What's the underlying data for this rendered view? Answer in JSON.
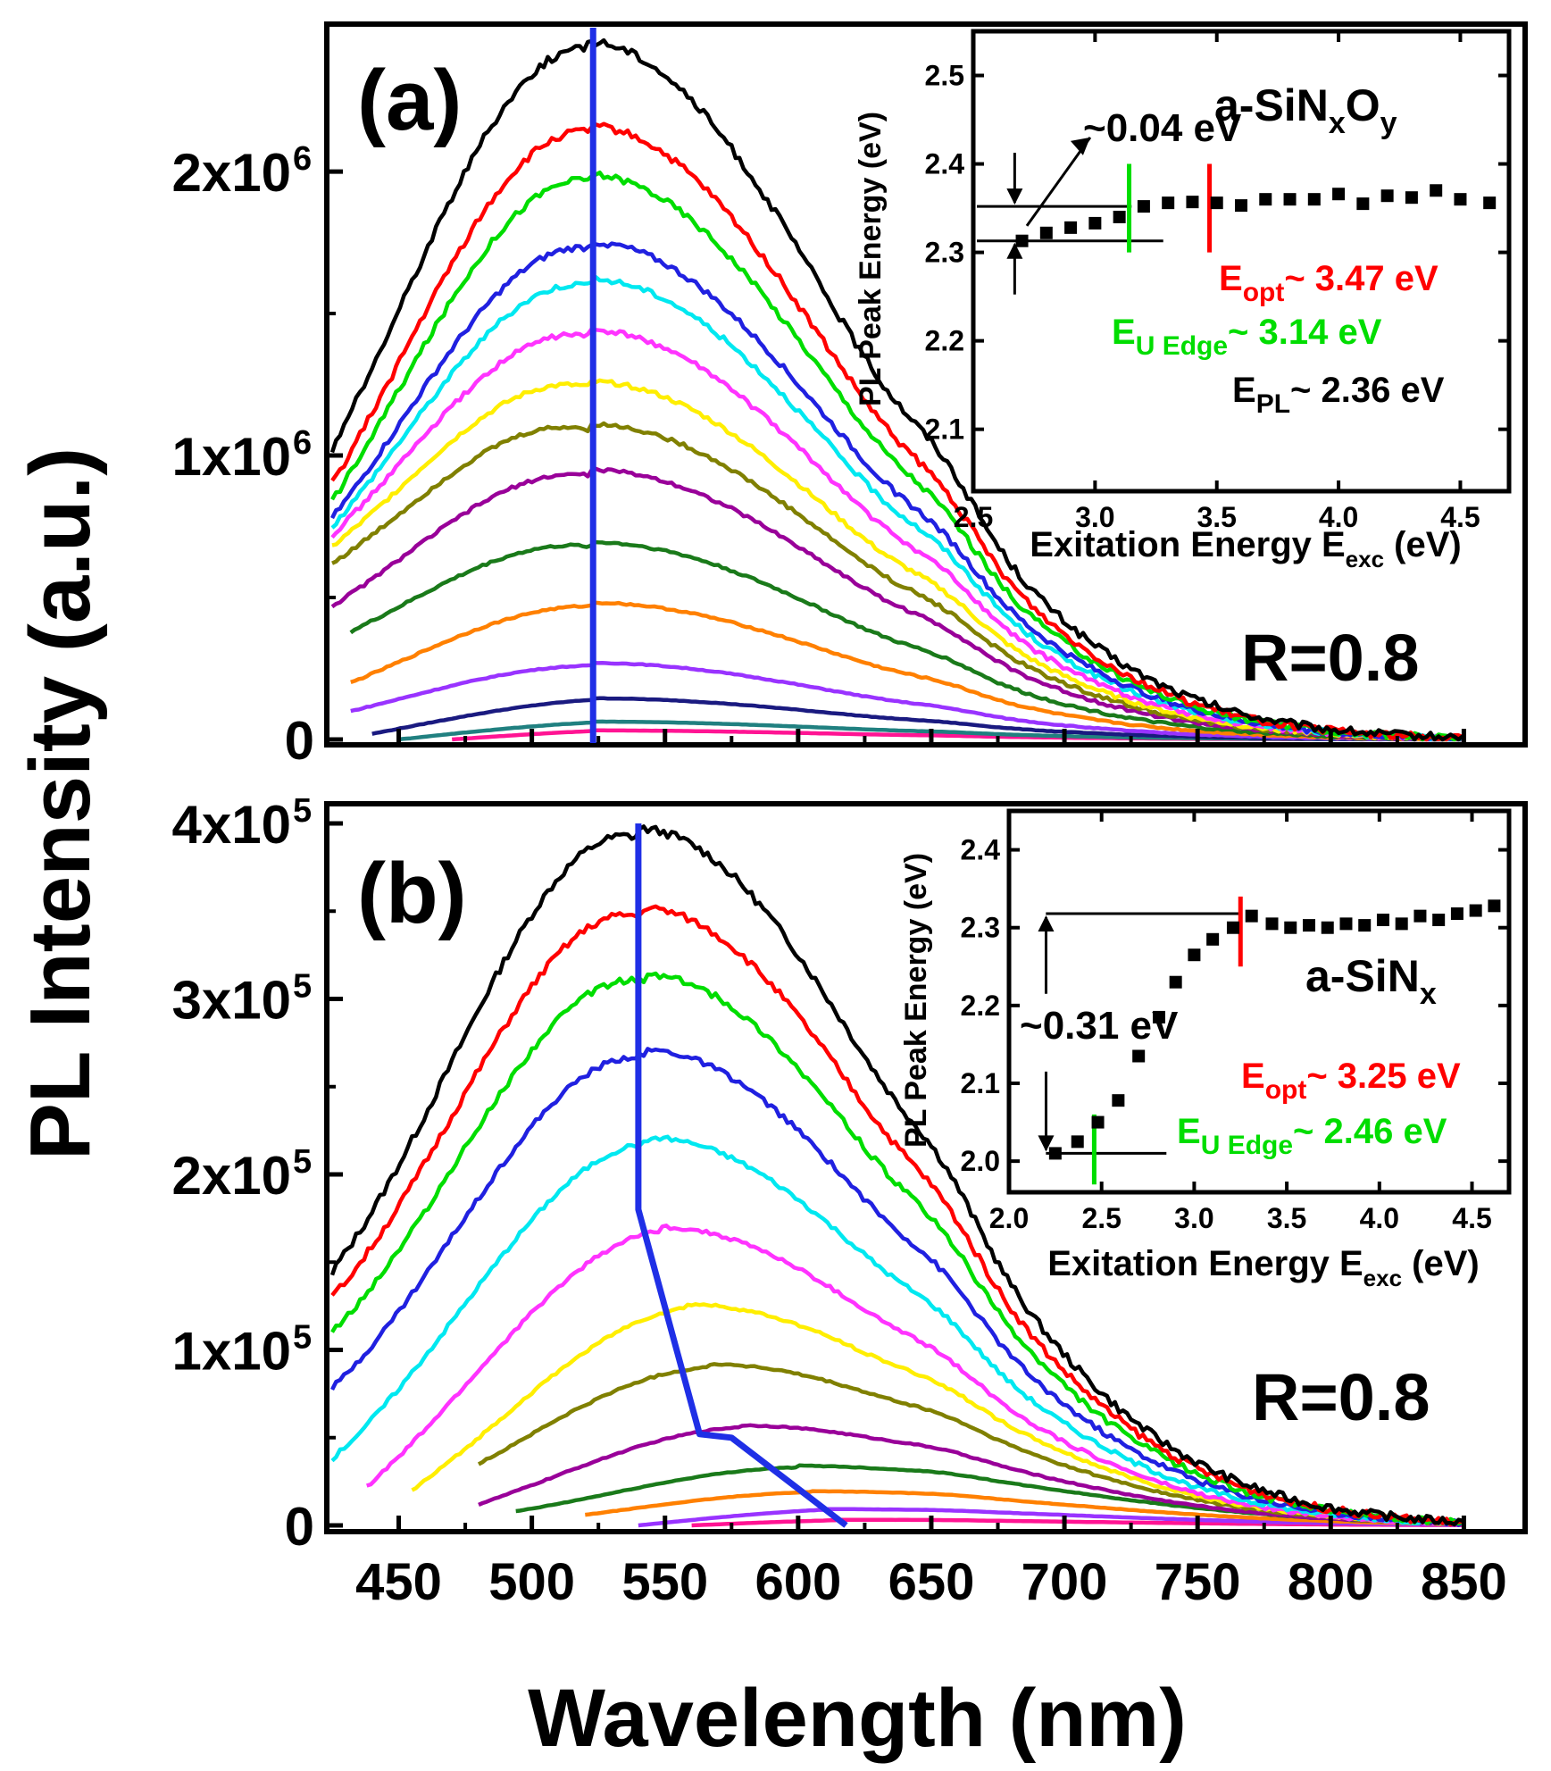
{
  "figure": {
    "ylabel": "PL Intensity (a.u.)",
    "xlabel": "Wavelength (nm)",
    "x_ticks": [
      "450",
      "500",
      "550",
      "600",
      "650",
      "700",
      "750",
      "800",
      "850"
    ]
  },
  "colors": {
    "black": "#000000",
    "red": "#ff0000",
    "green": "#00dd00",
    "blue": "#2020e0",
    "cyan": "#00e8f0",
    "magenta": "#ff33ff",
    "yellow": "#ffee00",
    "olive": "#808000",
    "purple": "#990099",
    "darkgreen": "#1a7a1a",
    "orange": "#ff8000",
    "violet": "#9933ff",
    "navy": "#1a1a80",
    "teal": "#208080",
    "pink": "#ff1493",
    "trace": "#1f2fe6"
  },
  "chart_data": [
    {
      "id": "a",
      "type": "line",
      "panel_label": "(a)",
      "annotation": "R=0.8",
      "x_range": [
        423,
        873
      ],
      "ylim": [
        0,
        2.45
      ],
      "ytick_values": [
        0,
        1,
        2
      ],
      "ytick_labels": [
        "0",
        "1x10",
        "2x10"
      ],
      "ytick_exponent": "6",
      "y_unit": "x10^6",
      "peak_line_x": [
        523,
        523
      ],
      "series": [
        {
          "name": "curve-1",
          "color": "black",
          "peak_x": 520,
          "peak": 2.43,
          "x0": 425,
          "x1": 850,
          "y0": 1.02,
          "tail": 0.03
        },
        {
          "name": "curve-2",
          "color": "red",
          "peak_x": 521,
          "peak": 2.14,
          "x0": 425,
          "x1": 850,
          "y0": 0.9,
          "tail": 0.02
        },
        {
          "name": "curve-3",
          "color": "green",
          "peak_x": 521,
          "peak": 1.97,
          "x0": 425,
          "x1": 850,
          "y0": 0.84,
          "tail": 0.02
        },
        {
          "name": "curve-4",
          "color": "blue",
          "peak_x": 522,
          "peak": 1.73,
          "x0": 425,
          "x1": 850,
          "y0": 0.78,
          "tail": 0.02
        },
        {
          "name": "curve-5",
          "color": "cyan",
          "peak_x": 522,
          "peak": 1.6,
          "x0": 425,
          "x1": 850,
          "y0": 0.75,
          "tail": 0.02
        },
        {
          "name": "curve-6",
          "color": "magenta",
          "peak_x": 522,
          "peak": 1.42,
          "x0": 425,
          "x1": 850,
          "y0": 0.72,
          "tail": 0.02
        },
        {
          "name": "curve-7",
          "color": "yellow",
          "peak_x": 522,
          "peak": 1.24,
          "x0": 425,
          "x1": 850,
          "y0": 0.68,
          "tail": 0.02
        },
        {
          "name": "curve-8",
          "color": "olive",
          "peak_x": 522,
          "peak": 1.09,
          "x0": 425,
          "x1": 850,
          "y0": 0.62,
          "tail": 0.02
        },
        {
          "name": "curve-9",
          "color": "purple",
          "peak_x": 522,
          "peak": 0.93,
          "x0": 425,
          "x1": 850,
          "y0": 0.47,
          "tail": 0.02
        },
        {
          "name": "curve-10",
          "color": "darkgreen",
          "peak_x": 522,
          "peak": 0.68,
          "x0": 432,
          "x1": 850,
          "y0": 0.38,
          "tail": 0.015
        },
        {
          "name": "curve-11",
          "color": "orange",
          "peak_x": 522,
          "peak": 0.47,
          "x0": 432,
          "x1": 850,
          "y0": 0.2,
          "tail": 0.012
        },
        {
          "name": "curve-12",
          "color": "violet",
          "peak_x": 522,
          "peak": 0.26,
          "x0": 432,
          "x1": 850,
          "y0": 0.1,
          "tail": 0.01
        },
        {
          "name": "curve-13",
          "color": "navy",
          "peak_x": 523,
          "peak": 0.14,
          "x0": 440,
          "x1": 850,
          "y0": 0.02,
          "tail": 0.005
        },
        {
          "name": "curve-14",
          "color": "teal",
          "peak_x": 523,
          "peak": 0.06,
          "x0": 450,
          "x1": 850,
          "y0": 0.0,
          "tail": 0.003
        },
        {
          "name": "curve-15",
          "color": "pink",
          "peak_x": 523,
          "peak": 0.03,
          "x0": 470,
          "x1": 850,
          "y0": 0.0,
          "tail": 0.002
        }
      ],
      "inset": {
        "type": "scatter",
        "xlabel": "Exitation Energy E",
        "xlabel_sub": "exc",
        "xlabel_unit": " (eV)",
        "ylabel": "PL Peak Energy (eV)",
        "xlim": [
          2.5,
          4.7
        ],
        "ylim": [
          2.03,
          2.55
        ],
        "xtick_values": [
          2.5,
          3.0,
          3.5,
          4.0,
          4.5
        ],
        "xtick_labels": [
          "2.5",
          "3.0",
          "3.5",
          "4.0",
          "4.5"
        ],
        "ytick_values": [
          2.1,
          2.2,
          2.3,
          2.4,
          2.5
        ],
        "ytick_labels": [
          "2.1",
          "2.2",
          "2.3",
          "2.4",
          "2.5"
        ],
        "x": [
          2.7,
          2.8,
          2.9,
          3.0,
          3.1,
          3.2,
          3.3,
          3.4,
          3.5,
          3.6,
          3.7,
          3.8,
          3.9,
          4.0,
          4.1,
          4.2,
          4.3,
          4.4,
          4.5,
          4.62
        ],
        "y": [
          2.313,
          2.322,
          2.328,
          2.333,
          2.34,
          2.352,
          2.356,
          2.357,
          2.356,
          2.353,
          2.36,
          2.36,
          2.36,
          2.366,
          2.355,
          2.364,
          2.362,
          2.37,
          2.36,
          2.356
        ],
        "hlines": [
          {
            "y": 2.352,
            "x": [
              2.5,
              3.15
            ]
          },
          {
            "y": 2.313,
            "x": [
              2.5,
              3.28
            ]
          }
        ],
        "arrow_x": 2.67,
        "arrow_range": [
          2.313,
          2.352
        ],
        "pointer_from": [
          2.72,
          2.33
        ],
        "pointer_to": [
          2.98,
          2.43
        ],
        "vlines": [
          {
            "x": 3.14,
            "y": [
              2.3,
              2.4
            ],
            "color": "green"
          },
          {
            "x": 3.47,
            "y": [
              2.3,
              2.4
            ],
            "color": "red"
          }
        ],
        "delta_label": "~0.04 eV",
        "material": {
          "base": "a-SiN",
          "sub1": "x",
          "mid": "O",
          "sub2": "y"
        },
        "e_opt": {
          "base": "E",
          "sub": "opt",
          "value": "~ 3.47 eV"
        },
        "e_u": {
          "base": "E",
          "sub": "U Edge",
          "value": "~ 3.14 eV"
        },
        "e_pl": {
          "base": "E",
          "sub": "PL",
          "value": "~ 2.36 eV"
        }
      }
    },
    {
      "id": "b",
      "type": "line",
      "panel_label": "(b)",
      "annotation": "R=0.8",
      "x_range": [
        423,
        873
      ],
      "ylim": [
        0,
        4.0
      ],
      "ytick_values": [
        0,
        1,
        2,
        3,
        4
      ],
      "ytick_labels": [
        "0",
        "1x10",
        "2x10",
        "3x10",
        "4x10"
      ],
      "ytick_exponent": "5",
      "y_unit": "x10^5",
      "peak_line_x": [
        540,
        540,
        563,
        575,
        618
      ],
      "peak_line_y": [
        4.0,
        1.8,
        0.52,
        0.5,
        0.0
      ],
      "series": [
        {
          "name": "curve-1",
          "color": "black",
          "peak_x": 540,
          "peak": 3.92,
          "x0": 425,
          "x1": 850,
          "y0": 1.45,
          "tail": 0.05
        },
        {
          "name": "curve-2",
          "color": "red",
          "peak_x": 541,
          "peak": 3.47,
          "x0": 425,
          "x1": 850,
          "y0": 1.3,
          "tail": 0.05
        },
        {
          "name": "curve-3",
          "color": "green",
          "peak_x": 542,
          "peak": 3.1,
          "x0": 425,
          "x1": 850,
          "y0": 1.1,
          "tail": 0.04
        },
        {
          "name": "curve-4",
          "color": "blue",
          "peak_x": 542,
          "peak": 2.67,
          "x0": 425,
          "x1": 850,
          "y0": 0.78,
          "tail": 0.04
        },
        {
          "name": "curve-5",
          "color": "cyan",
          "peak_x": 544,
          "peak": 2.18,
          "x0": 425,
          "x1": 850,
          "y0": 0.38,
          "tail": 0.03
        },
        {
          "name": "curve-6",
          "color": "magenta",
          "peak_x": 548,
          "peak": 1.68,
          "x0": 438,
          "x1": 850,
          "y0": 0.22,
          "tail": 0.02
        },
        {
          "name": "curve-7",
          "color": "yellow",
          "peak_x": 558,
          "peak": 1.24,
          "x0": 455,
          "x1": 850,
          "y0": 0.2,
          "tail": 0.02
        },
        {
          "name": "curve-8",
          "color": "olive",
          "peak_x": 566,
          "peak": 0.9,
          "x0": 480,
          "x1": 850,
          "y0": 0.35,
          "tail": 0.02
        },
        {
          "name": "curve-9",
          "color": "purple",
          "peak_x": 578,
          "peak": 0.56,
          "x0": 480,
          "x1": 850,
          "y0": 0.12,
          "tail": 0.01
        },
        {
          "name": "curve-10",
          "color": "darkgreen",
          "peak_x": 600,
          "peak": 0.33,
          "x0": 494,
          "x1": 850,
          "y0": 0.08,
          "tail": 0.01
        },
        {
          "name": "curve-11",
          "color": "orange",
          "peak_x": 605,
          "peak": 0.19,
          "x0": 520,
          "x1": 850,
          "y0": 0.06,
          "tail": 0.005
        },
        {
          "name": "curve-12",
          "color": "violet",
          "peak_x": 610,
          "peak": 0.09,
          "x0": 540,
          "x1": 850,
          "y0": 0.0,
          "tail": 0.003
        },
        {
          "name": "curve-13",
          "color": "pink",
          "peak_x": 615,
          "peak": 0.03,
          "x0": 560,
          "x1": 850,
          "y0": 0.0,
          "tail": 0.002
        }
      ],
      "inset": {
        "type": "scatter",
        "xlabel": "Exitation Energy E",
        "xlabel_sub": "exc",
        "xlabel_unit": " (eV)",
        "ylabel": "PL Peak Energy (eV)",
        "xlim": [
          2.0,
          4.7
        ],
        "ylim": [
          1.96,
          2.45
        ],
        "xtick_values": [
          2.0,
          2.5,
          3.0,
          3.5,
          4.0,
          4.5
        ],
        "xtick_labels": [
          "2.0",
          "2.5",
          "3.0",
          "3.5",
          "4.0",
          "4.5"
        ],
        "ytick_values": [
          2.0,
          2.1,
          2.2,
          2.3,
          2.4
        ],
        "ytick_labels": [
          "2.0",
          "2.1",
          "2.2",
          "2.3",
          "2.4"
        ],
        "x": [
          2.25,
          2.37,
          2.48,
          2.59,
          2.7,
          2.81,
          2.9,
          3.0,
          3.1,
          3.21,
          3.31,
          3.42,
          3.52,
          3.62,
          3.72,
          3.82,
          3.92,
          4.02,
          4.12,
          4.22,
          4.32,
          4.42,
          4.52,
          4.62
        ],
        "y": [
          2.01,
          2.025,
          2.05,
          2.078,
          2.135,
          2.185,
          2.23,
          2.265,
          2.285,
          2.3,
          2.315,
          2.305,
          2.3,
          2.303,
          2.3,
          2.305,
          2.303,
          2.31,
          2.305,
          2.315,
          2.31,
          2.318,
          2.322,
          2.328
        ],
        "hlines": [
          {
            "y": 2.318,
            "x": [
              2.18,
              3.25
            ]
          },
          {
            "y": 2.01,
            "x": [
              2.18,
              2.85
            ]
          }
        ],
        "arrow_x": 2.2,
        "arrow_range": [
          2.01,
          2.318
        ],
        "vlines": [
          {
            "x": 2.46,
            "y": [
              1.97,
              2.06
            ],
            "color": "green"
          },
          {
            "x": 3.25,
            "y": [
              2.25,
              2.34
            ],
            "color": "red"
          }
        ],
        "delta_label": "~0.31 eV",
        "material": {
          "base": "a-SiN",
          "sub1": "x"
        },
        "e_opt": {
          "base": "E",
          "sub": "opt",
          "value": "~ 3.25 eV"
        },
        "e_u": {
          "base": "E",
          "sub": "U Edge",
          "value": "~ 2.46 eV"
        }
      }
    }
  ]
}
